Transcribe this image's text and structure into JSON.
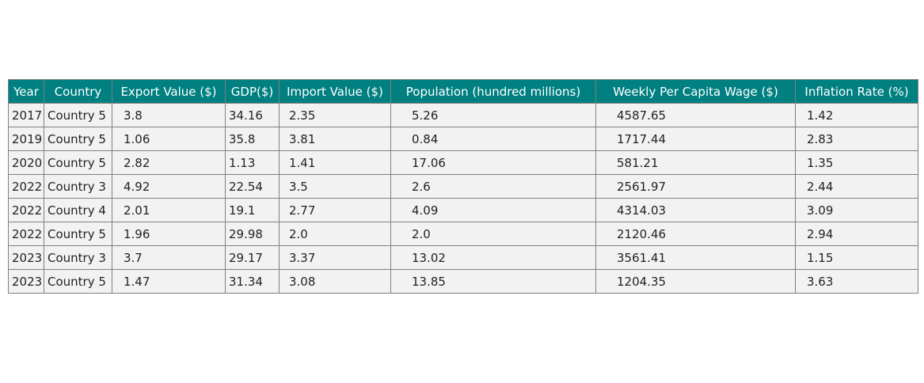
{
  "chart_data": {
    "type": "table",
    "columns": [
      "Year",
      "Country",
      "Export Value ($)",
      "GDP($)",
      "Import Value ($)",
      "Population (hundred millions)",
      "Weekly Per Capita Wage ($)",
      "Inflation Rate (%)"
    ],
    "rows": [
      [
        "2017",
        "Country 5",
        "3.8",
        "34.16",
        "2.35",
        "5.26",
        "4587.65",
        "1.42"
      ],
      [
        "2019",
        "Country 5",
        "1.06",
        "35.8",
        "3.81",
        "0.84",
        "1717.44",
        "2.83"
      ],
      [
        "2020",
        "Country 5",
        "2.82",
        "1.13",
        "1.41",
        "17.06",
        "581.21",
        "1.35"
      ],
      [
        "2022",
        "Country 3",
        "4.92",
        "22.54",
        "3.5",
        "2.6",
        "2561.97",
        "2.44"
      ],
      [
        "2022",
        "Country 4",
        "2.01",
        "19.1",
        "2.77",
        "4.09",
        "4314.03",
        "3.09"
      ],
      [
        "2022",
        "Country 5",
        "1.96",
        "29.98",
        "2.0",
        "2.0",
        "2120.46",
        "2.94"
      ],
      [
        "2023",
        "Country 3",
        "3.7",
        "29.17",
        "3.37",
        "13.02",
        "3561.41",
        "1.15"
      ],
      [
        "2023",
        "Country 5",
        "1.47",
        "31.34",
        "3.08",
        "13.85",
        "1204.35",
        "3.63"
      ]
    ]
  },
  "colors": {
    "header_background": "#008080",
    "header_text": "#ffffff",
    "cell_background": "#f2f2f2",
    "border": "#808080"
  }
}
